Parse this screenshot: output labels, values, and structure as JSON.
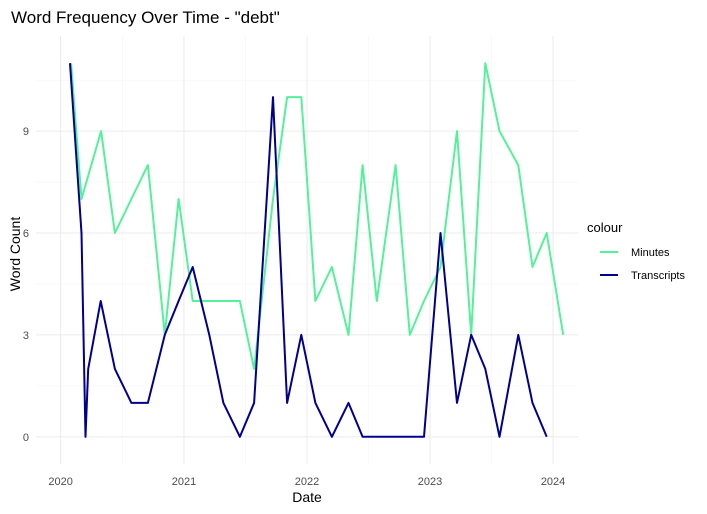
{
  "chart_data": {
    "type": "line",
    "title": "Word Frequency Over Time - \"debt\"",
    "xlabel": "Date",
    "ylabel": "Word Count",
    "x_type": "date",
    "xlim": [
      "2019-10-20",
      "2024-03-15"
    ],
    "ylim": [
      -0.8,
      11.8
    ],
    "x_ticks": [
      {
        "date": "2020-01-01",
        "label": "2020"
      },
      {
        "date": "2021-01-01",
        "label": "2021"
      },
      {
        "date": "2022-01-01",
        "label": "2022"
      },
      {
        "date": "2023-01-01",
        "label": "2023"
      },
      {
        "date": "2024-01-01",
        "label": "2024"
      }
    ],
    "y_ticks": [
      0,
      3,
      6,
      9
    ],
    "grid": true,
    "legend": {
      "title": "colour",
      "placement": "right"
    },
    "series": [
      {
        "name": "Minutes",
        "color": "#55f09a",
        "points": [
          {
            "x": "2020-02-01",
            "y": 11
          },
          {
            "x": "2020-03-03",
            "y": 7
          },
          {
            "x": "2020-04-30",
            "y": 9
          },
          {
            "x": "2020-06-10",
            "y": 6
          },
          {
            "x": "2020-07-29",
            "y": 7
          },
          {
            "x": "2020-09-16",
            "y": 8
          },
          {
            "x": "2020-11-05",
            "y": 3
          },
          {
            "x": "2020-12-16",
            "y": 7
          },
          {
            "x": "2021-01-27",
            "y": 4
          },
          {
            "x": "2021-03-17",
            "y": 4
          },
          {
            "x": "2021-04-28",
            "y": 4
          },
          {
            "x": "2021-06-16",
            "y": 4
          },
          {
            "x": "2021-07-28",
            "y": 2
          },
          {
            "x": "2021-09-22",
            "y": 7
          },
          {
            "x": "2021-11-03",
            "y": 10
          },
          {
            "x": "2021-12-15",
            "y": 10
          },
          {
            "x": "2022-01-26",
            "y": 4
          },
          {
            "x": "2022-03-16",
            "y": 5
          },
          {
            "x": "2022-05-04",
            "y": 3
          },
          {
            "x": "2022-06-15",
            "y": 8
          },
          {
            "x": "2022-07-27",
            "y": 4
          },
          {
            "x": "2022-09-21",
            "y": 8
          },
          {
            "x": "2022-11-02",
            "y": 3
          },
          {
            "x": "2022-12-14",
            "y": 4
          },
          {
            "x": "2023-02-01",
            "y": 5
          },
          {
            "x": "2023-03-22",
            "y": 9
          },
          {
            "x": "2023-05-03",
            "y": 3
          },
          {
            "x": "2023-06-14",
            "y": 11
          },
          {
            "x": "2023-07-26",
            "y": 9
          },
          {
            "x": "2023-09-20",
            "y": 8
          },
          {
            "x": "2023-11-01",
            "y": 5
          },
          {
            "x": "2023-12-13",
            "y": 6
          },
          {
            "x": "2024-01-31",
            "y": 3
          }
        ]
      },
      {
        "name": "Transcripts",
        "color": "#00008b",
        "points": [
          {
            "x": "2020-01-29",
            "y": 11
          },
          {
            "x": "2020-03-03",
            "y": 6
          },
          {
            "x": "2020-03-15",
            "y": 0
          },
          {
            "x": "2020-03-23",
            "y": 2
          },
          {
            "x": "2020-04-29",
            "y": 4
          },
          {
            "x": "2020-06-10",
            "y": 2
          },
          {
            "x": "2020-07-29",
            "y": 1
          },
          {
            "x": "2020-09-16",
            "y": 1
          },
          {
            "x": "2020-11-05",
            "y": 3
          },
          {
            "x": "2020-12-16",
            "y": 4
          },
          {
            "x": "2021-01-27",
            "y": 5
          },
          {
            "x": "2021-03-17",
            "y": 3
          },
          {
            "x": "2021-04-28",
            "y": 1
          },
          {
            "x": "2021-06-16",
            "y": 0
          },
          {
            "x": "2021-07-28",
            "y": 1
          },
          {
            "x": "2021-09-22",
            "y": 10
          },
          {
            "x": "2021-11-03",
            "y": 1
          },
          {
            "x": "2021-12-15",
            "y": 3
          },
          {
            "x": "2022-01-26",
            "y": 1
          },
          {
            "x": "2022-03-16",
            "y": 0
          },
          {
            "x": "2022-05-04",
            "y": 1
          },
          {
            "x": "2022-06-15",
            "y": 0
          },
          {
            "x": "2022-07-27",
            "y": 0
          },
          {
            "x": "2022-09-21",
            "y": 0
          },
          {
            "x": "2022-11-02",
            "y": 0
          },
          {
            "x": "2022-12-14",
            "y": 0
          },
          {
            "x": "2023-02-01",
            "y": 6
          },
          {
            "x": "2023-03-22",
            "y": 1
          },
          {
            "x": "2023-05-03",
            "y": 3
          },
          {
            "x": "2023-06-14",
            "y": 2
          },
          {
            "x": "2023-07-26",
            "y": 0
          },
          {
            "x": "2023-09-20",
            "y": 3
          },
          {
            "x": "2023-11-01",
            "y": 1
          },
          {
            "x": "2023-12-13",
            "y": 0
          }
        ]
      }
    ]
  }
}
